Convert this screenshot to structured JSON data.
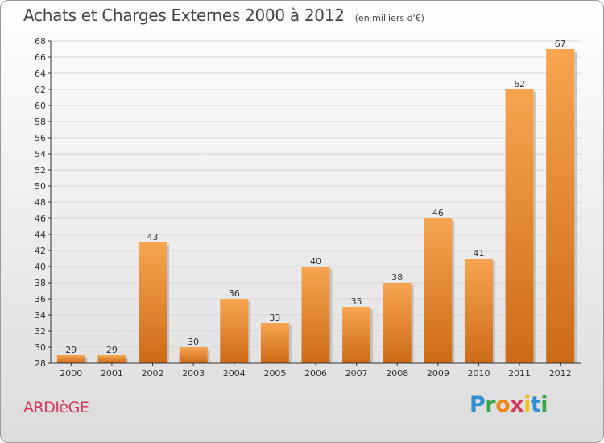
{
  "header": {
    "title": "Achats et Charges Externes 2000 à 2012",
    "subtitle": "(en milliers d'€)"
  },
  "commune": {
    "name": "ARDIèGE",
    "color": "#d8365a"
  },
  "logo": {
    "text": "Proxiti",
    "letters": [
      {
        "char": "P",
        "color": "#2f8fd0"
      },
      {
        "char": "r",
        "color": "#39a845"
      },
      {
        "char": "o",
        "color": "#f08a1c"
      },
      {
        "char": "x",
        "color": "#d8365a"
      },
      {
        "char": "i",
        "color": "#f2c21b"
      },
      {
        "char": "t",
        "color": "#2f8fd0"
      },
      {
        "char": "i",
        "color": "#39a845"
      }
    ]
  },
  "colors": {
    "bar_top": "#f7a550",
    "bar_bottom": "#cc6b18",
    "bar_shadow": "#b5b5b5",
    "grid": "#d6d6d6",
    "axis": "#333333"
  },
  "chart_data": {
    "type": "bar",
    "title": "Achats et Charges Externes 2000 à 2012",
    "subtitle": "(en milliers d'€)",
    "categories": [
      "2000",
      "2001",
      "2002",
      "2003",
      "2004",
      "2005",
      "2006",
      "2007",
      "2008",
      "2009",
      "2010",
      "2011",
      "2012"
    ],
    "values": [
      29,
      29,
      43,
      30,
      36,
      33,
      40,
      35,
      38,
      46,
      41,
      62,
      67
    ],
    "ylim": [
      28,
      68
    ],
    "yticks": [
      28,
      30,
      32,
      34,
      36,
      38,
      40,
      42,
      44,
      46,
      48,
      50,
      52,
      54,
      56,
      58,
      60,
      62,
      64,
      66,
      68
    ],
    "grid": true,
    "data_labels": true
  }
}
